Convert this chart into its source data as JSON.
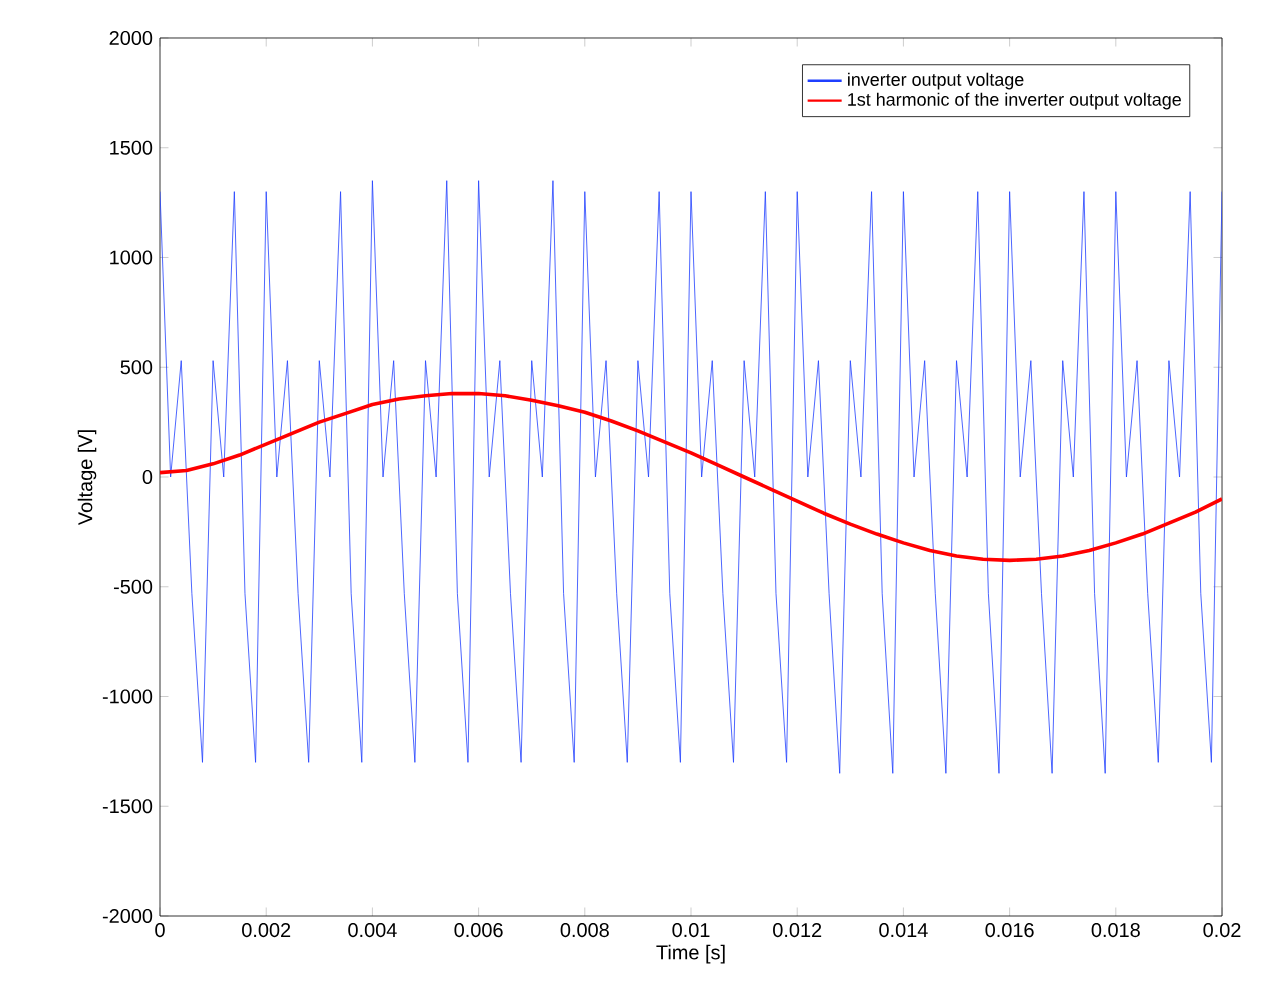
{
  "chart_data": {
    "type": "line",
    "xlabel": "Time [s]",
    "ylabel": "Voltage [V]",
    "xlim": [
      0,
      0.02
    ],
    "ylim": [
      -2000,
      2000
    ],
    "xticks": [
      0,
      0.002,
      0.004,
      0.006,
      0.008,
      0.01,
      0.012,
      0.014,
      0.016,
      0.018,
      0.02
    ],
    "yticks": [
      -2000,
      -1500,
      -1000,
      -500,
      0,
      500,
      1000,
      1500,
      2000
    ],
    "grid": false,
    "legend": "top right",
    "series": [
      {
        "name": "inverter output voltage",
        "color": "#1f3fff",
        "x": [
          0,
          0.0002,
          0.0004,
          0.0006,
          0.0008,
          0.001,
          0.0012,
          0.0014,
          0.0016,
          0.0018,
          0.002,
          0.0022,
          0.0024,
          0.0026,
          0.0028,
          0.003,
          0.0032,
          0.0034,
          0.0036,
          0.0038,
          0.004,
          0.0042,
          0.0044,
          0.0046,
          0.0048,
          0.005,
          0.0052,
          0.0054,
          0.0056,
          0.0058,
          0.006,
          0.0062,
          0.0064,
          0.0066,
          0.0068,
          0.007,
          0.0072,
          0.0074,
          0.0076,
          0.0078,
          0.008,
          0.0082,
          0.0084,
          0.0086,
          0.0088,
          0.009,
          0.0092,
          0.0094,
          0.0096,
          0.0098,
          0.01,
          0.0102,
          0.0104,
          0.0106,
          0.0108,
          0.011,
          0.0112,
          0.0114,
          0.0116,
          0.0118,
          0.012,
          0.0122,
          0.0124,
          0.0126,
          0.0128,
          0.013,
          0.0132,
          0.0134,
          0.0136,
          0.0138,
          0.014,
          0.0142,
          0.0144,
          0.0146,
          0.0148,
          0.015,
          0.0152,
          0.0154,
          0.0156,
          0.0158,
          0.016,
          0.0162,
          0.0164,
          0.0166,
          0.0168,
          0.017,
          0.0172,
          0.0174,
          0.0176,
          0.0178,
          0.018,
          0.0182,
          0.0184,
          0.0186,
          0.0188,
          0.019,
          0.0192,
          0.0194,
          0.0196,
          0.0198,
          0.02
        ],
        "values": [
          1300,
          0,
          530,
          -530,
          -1300,
          530,
          0,
          1300,
          -530,
          -1300,
          1300,
          0,
          530,
          -530,
          -1300,
          530,
          0,
          1300,
          -530,
          -1300,
          1350,
          0,
          530,
          -530,
          -1300,
          530,
          0,
          1350,
          -530,
          -1300,
          1350,
          0,
          530,
          -530,
          -1300,
          530,
          0,
          1350,
          -530,
          -1300,
          1300,
          0,
          530,
          -530,
          -1300,
          530,
          0,
          1300,
          -530,
          -1300,
          1300,
          0,
          530,
          -530,
          -1300,
          530,
          0,
          1300,
          -530,
          -1300,
          1300,
          0,
          530,
          -530,
          -1350,
          530,
          0,
          1300,
          -530,
          -1350,
          1300,
          0,
          530,
          -530,
          -1350,
          530,
          0,
          1300,
          -530,
          -1350,
          1300,
          0,
          530,
          -530,
          -1350,
          530,
          0,
          1300,
          -530,
          -1350,
          1300,
          0,
          530,
          -530,
          -1300,
          530,
          0,
          1300,
          -530,
          -1300,
          1300
        ]
      },
      {
        "name": "1st harmonic of the inverter output voltage",
        "color": "#ff0000",
        "x": [
          0,
          0.0005,
          0.001,
          0.0015,
          0.002,
          0.0025,
          0.003,
          0.0035,
          0.004,
          0.0045,
          0.005,
          0.0055,
          0.006,
          0.0065,
          0.007,
          0.0075,
          0.008,
          0.0085,
          0.009,
          0.0095,
          0.01,
          0.0105,
          0.011,
          0.0115,
          0.012,
          0.0125,
          0.013,
          0.0135,
          0.014,
          0.0145,
          0.015,
          0.0155,
          0.016,
          0.0165,
          0.017,
          0.0175,
          0.018,
          0.0185,
          0.019,
          0.0195,
          0.02
        ],
        "values": [
          20,
          30,
          60,
          100,
          150,
          200,
          250,
          290,
          330,
          355,
          370,
          380,
          380,
          370,
          350,
          325,
          295,
          255,
          210,
          160,
          110,
          55,
          0,
          -55,
          -110,
          -165,
          -215,
          -260,
          -300,
          -335,
          -360,
          -375,
          -380,
          -375,
          -360,
          -335,
          -300,
          -260,
          -210,
          -160,
          -100
        ]
      }
    ]
  }
}
